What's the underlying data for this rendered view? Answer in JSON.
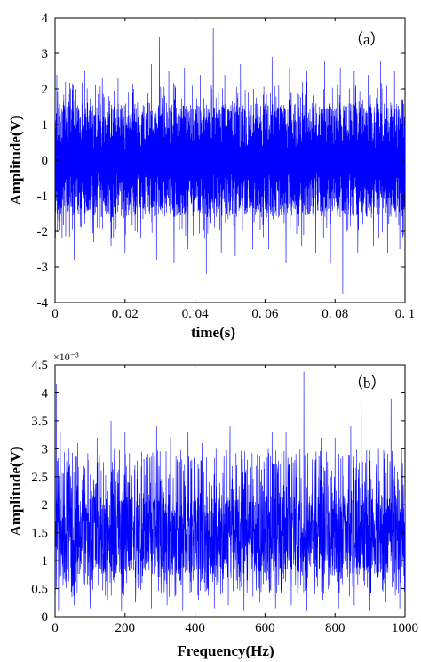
{
  "chart_data": [
    {
      "type": "line",
      "panel_label": "（a）",
      "xlabel": "time(s)",
      "ylabel": "Amplitude(V)",
      "xlim": [
        0,
        0.1
      ],
      "ylim": [
        -4,
        4
      ],
      "xticks": [
        0,
        0.02,
        0.04,
        0.06,
        0.08,
        0.1
      ],
      "xtick_labels": [
        "0",
        "0. 02",
        "0. 04",
        "0. 06",
        "0. 08",
        "0. 1"
      ],
      "yticks": [
        -4,
        -3,
        -2,
        -1,
        0,
        1,
        2,
        3,
        4
      ],
      "ytick_labels": [
        "-4",
        "-3",
        "-2",
        "-1",
        "0",
        "1",
        "2",
        "3",
        "4"
      ],
      "series": [
        {
          "color": "#0000ff",
          "description_kind": "dense random noise signal",
          "band_low": -1.3,
          "band_high": 1.3,
          "peaks": [
            {
              "x": 0.0005,
              "y": 2.4
            },
            {
              "x": 0.003,
              "y": 2.2
            },
            {
              "x": 0.0085,
              "y": 2.5
            },
            {
              "x": 0.0135,
              "y": 2.3
            },
            {
              "x": 0.018,
              "y": 2.3
            },
            {
              "x": 0.0225,
              "y": 2.0
            },
            {
              "x": 0.0275,
              "y": 2.7
            },
            {
              "x": 0.0298,
              "y": 3.45
            },
            {
              "x": 0.0325,
              "y": 2.5
            },
            {
              "x": 0.037,
              "y": 2.6
            },
            {
              "x": 0.0415,
              "y": 2.4
            },
            {
              "x": 0.0452,
              "y": 3.7
            },
            {
              "x": 0.0485,
              "y": 2.4
            },
            {
              "x": 0.053,
              "y": 2.7
            },
            {
              "x": 0.058,
              "y": 2.5
            },
            {
              "x": 0.062,
              "y": 2.9
            },
            {
              "x": 0.067,
              "y": 2.6
            },
            {
              "x": 0.072,
              "y": 2.5
            },
            {
              "x": 0.077,
              "y": 2.8
            },
            {
              "x": 0.0815,
              "y": 2.6
            },
            {
              "x": 0.0855,
              "y": 2.5
            },
            {
              "x": 0.0895,
              "y": 2.4
            },
            {
              "x": 0.093,
              "y": 2.8
            },
            {
              "x": 0.097,
              "y": 2.5
            }
          ],
          "troughs": [
            {
              "x": 0.002,
              "y": -2.2
            },
            {
              "x": 0.0055,
              "y": -2.8
            },
            {
              "x": 0.011,
              "y": -2.3
            },
            {
              "x": 0.016,
              "y": -2.4
            },
            {
              "x": 0.02,
              "y": -2.6
            },
            {
              "x": 0.0245,
              "y": -2.2
            },
            {
              "x": 0.029,
              "y": -2.8
            },
            {
              "x": 0.034,
              "y": -2.9
            },
            {
              "x": 0.038,
              "y": -2.5
            },
            {
              "x": 0.0432,
              "y": -3.2
            },
            {
              "x": 0.0475,
              "y": -2.6
            },
            {
              "x": 0.0515,
              "y": -2.7
            },
            {
              "x": 0.0565,
              "y": -2.5
            },
            {
              "x": 0.061,
              "y": -2.5
            },
            {
              "x": 0.066,
              "y": -2.9
            },
            {
              "x": 0.0705,
              "y": -2.4
            },
            {
              "x": 0.0745,
              "y": -2.6
            },
            {
              "x": 0.0787,
              "y": -2.9
            },
            {
              "x": 0.0822,
              "y": -3.75
            },
            {
              "x": 0.0865,
              "y": -2.6
            },
            {
              "x": 0.091,
              "y": -2.4
            },
            {
              "x": 0.095,
              "y": -2.6
            },
            {
              "x": 0.0985,
              "y": -2.5
            }
          ]
        }
      ]
    },
    {
      "type": "line",
      "panel_label": "（b）",
      "xlabel": "Frequency(Hz)",
      "ylabel": "Amplitude(V)",
      "y_exponent_label": "×10⁻³",
      "xlim": [
        0,
        1000
      ],
      "ylim": [
        0,
        4.5
      ],
      "xticks": [
        0,
        200,
        400,
        600,
        800,
        1000
      ],
      "xtick_labels": [
        "0",
        "200",
        "400",
        "600",
        "800",
        "1000"
      ],
      "yticks": [
        0,
        0.5,
        1,
        1.5,
        2,
        2.5,
        3,
        3.5,
        4,
        4.5
      ],
      "ytick_labels": [
        "0",
        "0.5",
        "1",
        "1.5",
        "2",
        "2.5",
        "3",
        "3.5",
        "4",
        "4.5"
      ],
      "series": [
        {
          "color": "#0000ff",
          "description_kind": "dense noise spectrum",
          "band_low": 0.9,
          "band_high": 2.0,
          "peaks": [
            {
              "x": 3,
              "y": 4.15
            },
            {
              "x": 15,
              "y": 3.3
            },
            {
              "x": 40,
              "y": 3.0
            },
            {
              "x": 65,
              "y": 3.1
            },
            {
              "x": 80,
              "y": 3.95
            },
            {
              "x": 120,
              "y": 3.2
            },
            {
              "x": 160,
              "y": 3.5
            },
            {
              "x": 200,
              "y": 3.3
            },
            {
              "x": 240,
              "y": 3.1
            },
            {
              "x": 290,
              "y": 3.4
            },
            {
              "x": 330,
              "y": 3.2
            },
            {
              "x": 380,
              "y": 3.3
            },
            {
              "x": 420,
              "y": 3.1
            },
            {
              "x": 460,
              "y": 3.0
            },
            {
              "x": 500,
              "y": 3.4
            },
            {
              "x": 540,
              "y": 3.2
            },
            {
              "x": 580,
              "y": 3.1
            },
            {
              "x": 620,
              "y": 3.3
            },
            {
              "x": 660,
              "y": 3.3
            },
            {
              "x": 711,
              "y": 4.38
            },
            {
              "x": 760,
              "y": 3.2
            },
            {
              "x": 800,
              "y": 3.2
            },
            {
              "x": 845,
              "y": 3.4
            },
            {
              "x": 875,
              "y": 3.85
            },
            {
              "x": 920,
              "y": 3.3
            },
            {
              "x": 960,
              "y": 3.9
            },
            {
              "x": 990,
              "y": 3.0
            }
          ],
          "troughs": [
            {
              "x": 10,
              "y": 0.1
            },
            {
              "x": 55,
              "y": 0.2
            },
            {
              "x": 100,
              "y": 0.15
            },
            {
              "x": 150,
              "y": 0.3
            },
            {
              "x": 190,
              "y": 0.1
            },
            {
              "x": 230,
              "y": 0.25
            },
            {
              "x": 275,
              "y": 0.15
            },
            {
              "x": 320,
              "y": 0.2
            },
            {
              "x": 365,
              "y": 0.1
            },
            {
              "x": 410,
              "y": 0.3
            },
            {
              "x": 455,
              "y": 0.15
            },
            {
              "x": 495,
              "y": 0.2
            },
            {
              "x": 540,
              "y": 0.1
            },
            {
              "x": 585,
              "y": 0.25
            },
            {
              "x": 630,
              "y": 0.15
            },
            {
              "x": 675,
              "y": 0.2
            },
            {
              "x": 720,
              "y": 0.1
            },
            {
              "x": 765,
              "y": 0.3
            },
            {
              "x": 810,
              "y": 0.15
            },
            {
              "x": 855,
              "y": 0.2
            },
            {
              "x": 900,
              "y": 0.1
            },
            {
              "x": 945,
              "y": 0.25
            },
            {
              "x": 985,
              "y": 0.15
            }
          ]
        }
      ]
    }
  ]
}
